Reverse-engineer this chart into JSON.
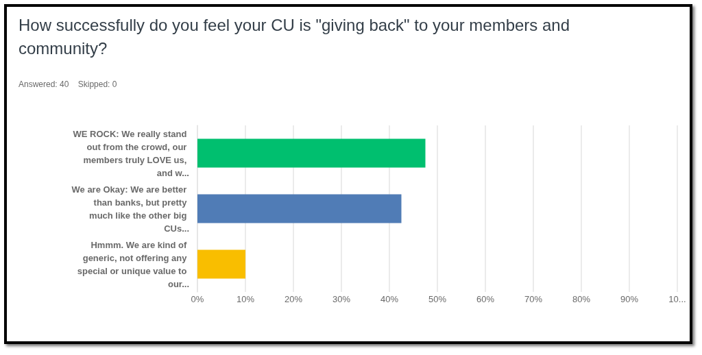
{
  "chart_data": {
    "type": "bar",
    "orientation": "horizontal",
    "title": "How successfully do you feel your CU is \"giving back\" to your members and community?",
    "subtitle": "Answered: 40    Skipped: 0",
    "categories": [
      "WE ROCK: We really stand out from the crowd, our members truly LOVE us, and w...",
      "We are Okay: We are better than banks, but pretty much like the other big CUs...",
      "Hmmm. We are kind of generic, not offering any special or unique value to our..."
    ],
    "values": [
      47.5,
      42.5,
      10
    ],
    "colors": [
      "#00bf6f",
      "#507cb6",
      "#f9be00"
    ],
    "xlim": [
      0,
      100
    ],
    "xticks": [
      {
        "value": 0,
        "label": "0%"
      },
      {
        "value": 10,
        "label": "10%"
      },
      {
        "value": 20,
        "label": "20%"
      },
      {
        "value": 30,
        "label": "30%"
      },
      {
        "value": 40,
        "label": "40%"
      },
      {
        "value": 50,
        "label": "50%"
      },
      {
        "value": 60,
        "label": "60%"
      },
      {
        "value": 70,
        "label": "70%"
      },
      {
        "value": 80,
        "label": "80%"
      },
      {
        "value": 90,
        "label": "90%"
      },
      {
        "value": 100,
        "label": "10..."
      }
    ],
    "grid": "x"
  }
}
